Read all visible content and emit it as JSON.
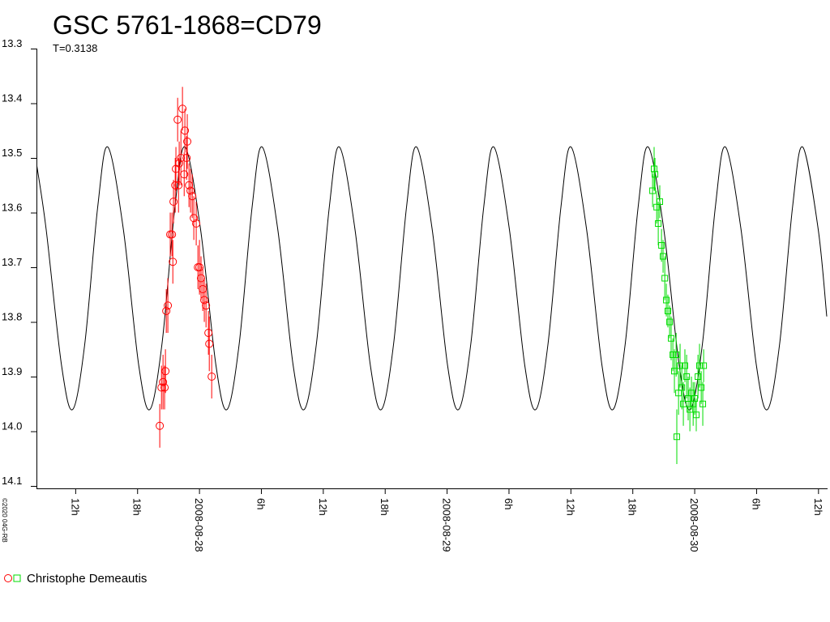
{
  "chart_data": {
    "type": "scatter",
    "title": "GSC 5761-1868=CD79",
    "subtitle": "T=0.3138",
    "credit": "©2020 04G-RB",
    "legend_label": "Christophe Demeautis",
    "y_inverted": true,
    "ylim": [
      13.3,
      14.1
    ],
    "yticks": [
      13.3,
      13.4,
      13.5,
      13.6,
      13.7,
      13.8,
      13.9,
      {
        "value": 14,
        "label": "14.0"
      },
      14.1
    ],
    "xlim": [
      "2008-08-27T08:12",
      "2008-08-30T12:48"
    ],
    "xticks": [
      {
        "value": "2008-08-27T12:00",
        "label": "12h"
      },
      {
        "value": "2008-08-27T18:00",
        "label": "18h"
      },
      {
        "value": "2008-08-28T00:00",
        "label": "2008-08-28"
      },
      {
        "value": "2008-08-28T06:00",
        "label": "6h"
      },
      {
        "value": "2008-08-28T12:00",
        "label": "12h"
      },
      {
        "value": "2008-08-28T18:00",
        "label": "18h"
      },
      {
        "value": "2008-08-29T00:00",
        "label": "2008-08-29"
      },
      {
        "value": "2008-08-29T06:00",
        "label": "6h"
      },
      {
        "value": "2008-08-29T12:00",
        "label": "12h"
      },
      {
        "value": "2008-08-29T18:00",
        "label": "18h"
      },
      {
        "value": "2008-08-30T00:00",
        "label": "2008-08-30"
      },
      {
        "value": "2008-08-30T06:00",
        "label": "6h"
      },
      {
        "value": "2008-08-30T12:00",
        "label": "12h"
      }
    ],
    "model": {
      "color": "#000000",
      "x": [
        "2008-08-27T08:12",
        "2008-08-27T09:08",
        "2008-08-27T10:38",
        "2008-08-27T11:43",
        "2008-08-27T12:53",
        "2008-08-27T14:08",
        "2008-08-27T15:07",
        "2008-08-27T16:37",
        "2008-08-27T18:07",
        "2008-08-27T19:12",
        "2008-08-27T20:22",
        "2008-08-27T21:37",
        "2008-08-27T22:36",
        "2008-08-28T00:06",
        "2008-08-28T01:36",
        "2008-08-28T02:41",
        "2008-08-28T03:51",
        "2008-08-28T05:06",
        "2008-08-28T06:05",
        "2008-08-28T07:35",
        "2008-08-28T09:05",
        "2008-08-28T10:10",
        "2008-08-28T11:20",
        "2008-08-28T12:35",
        "2008-08-28T13:34",
        "2008-08-28T15:04",
        "2008-08-28T16:34",
        "2008-08-28T17:39",
        "2008-08-28T18:49",
        "2008-08-28T20:04",
        "2008-08-28T21:03",
        "2008-08-28T22:33",
        "2008-08-29T00:03",
        "2008-08-29T01:08",
        "2008-08-29T02:18",
        "2008-08-29T03:33",
        "2008-08-29T04:32",
        "2008-08-29T06:02",
        "2008-08-29T07:32",
        "2008-08-29T08:37",
        "2008-08-29T09:47",
        "2008-08-29T11:02",
        "2008-08-29T12:01",
        "2008-08-29T13:31",
        "2008-08-29T15:01",
        "2008-08-29T16:06",
        "2008-08-29T17:16",
        "2008-08-29T18:31",
        "2008-08-29T19:30",
        "2008-08-29T21:00",
        "2008-08-29T22:30",
        "2008-08-29T23:35",
        "2008-08-30T00:45",
        "2008-08-30T02:00",
        "2008-08-30T02:59",
        "2008-08-30T04:29",
        "2008-08-30T05:59",
        "2008-08-30T07:04",
        "2008-08-30T08:14",
        "2008-08-30T09:29",
        "2008-08-30T10:28",
        "2008-08-30T11:58",
        "2008-08-30T12:48"
      ],
      "values": [
        13.51,
        13.63,
        13.88,
        13.96,
        13.84,
        13.59,
        13.48,
        13.63,
        13.88,
        13.96,
        13.84,
        13.59,
        13.48,
        13.63,
        13.88,
        13.96,
        13.84,
        13.59,
        13.48,
        13.63,
        13.88,
        13.96,
        13.84,
        13.59,
        13.48,
        13.63,
        13.88,
        13.96,
        13.84,
        13.59,
        13.48,
        13.63,
        13.88,
        13.96,
        13.84,
        13.59,
        13.48,
        13.63,
        13.88,
        13.96,
        13.84,
        13.59,
        13.48,
        13.63,
        13.88,
        13.96,
        13.84,
        13.59,
        13.48,
        13.63,
        13.88,
        13.96,
        13.84,
        13.59,
        13.48,
        13.63,
        13.88,
        13.96,
        13.84,
        13.59,
        13.48,
        13.63,
        13.79
      ]
    },
    "series": [
      {
        "marker": "circle",
        "color": "#ff0000",
        "x": [
          "2008-08-27T20:09",
          "2008-08-27T20:19",
          "2008-08-27T20:28",
          "2008-08-27T20:37",
          "2008-08-27T20:42",
          "2008-08-27T20:47",
          "2008-08-27T20:56",
          "2008-08-27T21:10",
          "2008-08-27T21:20",
          "2008-08-27T21:25",
          "2008-08-27T21:29",
          "2008-08-27T21:39",
          "2008-08-27T21:43",
          "2008-08-27T21:53",
          "2008-08-27T21:58",
          "2008-08-27T22:02",
          "2008-08-27T22:12",
          "2008-08-27T22:21",
          "2008-08-27T22:31",
          "2008-08-27T22:35",
          "2008-08-27T22:45",
          "2008-08-27T22:49",
          "2008-08-27T22:59",
          "2008-08-27T23:08",
          "2008-08-27T23:18",
          "2008-08-27T23:27",
          "2008-08-27T23:41",
          "2008-08-27T23:51",
          "2008-08-28T00:00",
          "2008-08-28T00:09",
          "2008-08-28T00:19",
          "2008-08-28T00:28",
          "2008-08-28T00:38",
          "2008-08-28T00:52",
          "2008-08-28T00:57",
          "2008-08-28T01:11"
        ],
        "values": [
          13.99,
          13.92,
          13.91,
          13.92,
          13.89,
          13.78,
          13.77,
          13.64,
          13.64,
          13.69,
          13.58,
          13.55,
          13.52,
          13.43,
          13.55,
          13.51,
          13.5,
          13.41,
          13.53,
          13.45,
          13.5,
          13.47,
          13.55,
          13.56,
          13.57,
          13.61,
          13.62,
          13.7,
          13.7,
          13.72,
          13.74,
          13.76,
          13.77,
          13.82,
          13.84,
          13.9
        ],
        "errors": [
          0.04,
          0.04,
          0.05,
          0.04,
          0.04,
          0.04,
          0.05,
          0.04,
          0.04,
          0.04,
          0.04,
          0.05,
          0.04,
          0.04,
          0.05,
          0.04,
          0.05,
          0.04,
          0.04,
          0.04,
          0.04,
          0.05,
          0.04,
          0.04,
          0.04,
          0.04,
          0.04,
          0.04,
          0.05,
          0.04,
          0.04,
          0.04,
          0.04,
          0.04,
          0.05,
          0.04
        ]
      },
      {
        "marker": "square",
        "color": "#00dd00",
        "x": [
          "2008-08-29T19:55",
          "2008-08-29T20:04",
          "2008-08-29T20:09",
          "2008-08-29T20:19",
          "2008-08-29T20:28",
          "2008-08-29T20:37",
          "2008-08-29T20:47",
          "2008-08-29T20:56",
          "2008-08-29T21:06",
          "2008-08-29T21:15",
          "2008-08-29T21:24",
          "2008-08-29T21:34",
          "2008-08-29T21:43",
          "2008-08-29T21:53",
          "2008-08-29T22:02",
          "2008-08-29T22:12",
          "2008-08-29T22:16",
          "2008-08-29T22:26",
          "2008-08-29T22:35",
          "2008-08-29T22:45",
          "2008-08-29T22:54",
          "2008-08-29T23:03",
          "2008-08-29T23:13",
          "2008-08-29T23:22",
          "2008-08-29T23:32",
          "2008-08-29T23:41",
          "2008-08-29T23:51",
          "2008-08-30T00:00",
          "2008-08-30T00:09",
          "2008-08-30T00:19",
          "2008-08-30T00:28",
          "2008-08-30T00:38",
          "2008-08-30T00:47",
          "2008-08-30T00:52"
        ],
        "values": [
          13.56,
          13.52,
          13.53,
          13.59,
          13.62,
          13.58,
          13.66,
          13.68,
          13.72,
          13.76,
          13.78,
          13.8,
          13.83,
          13.86,
          13.89,
          13.86,
          14.01,
          13.93,
          13.88,
          13.92,
          13.95,
          13.88,
          13.9,
          13.94,
          13.96,
          13.93,
          13.95,
          13.94,
          13.97,
          13.9,
          13.88,
          13.92,
          13.95,
          13.88
        ],
        "errors": [
          0.03,
          0.04,
          0.03,
          0.03,
          0.04,
          0.03,
          0.03,
          0.03,
          0.04,
          0.03,
          0.03,
          0.03,
          0.04,
          0.03,
          0.04,
          0.04,
          0.05,
          0.04,
          0.04,
          0.04,
          0.04,
          0.03,
          0.04,
          0.04,
          0.04,
          0.03,
          0.04,
          0.03,
          0.03,
          0.04,
          0.04,
          0.03,
          0.04,
          0.03
        ]
      }
    ]
  }
}
